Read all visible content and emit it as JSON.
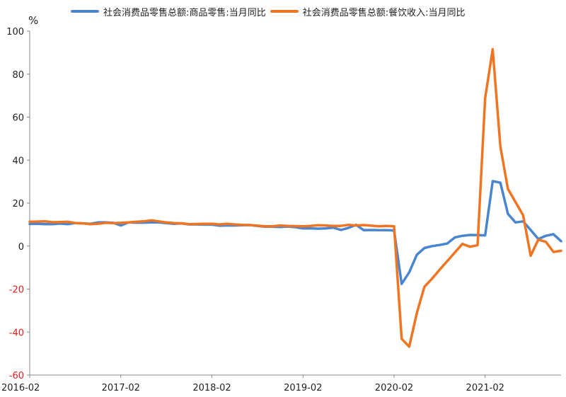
{
  "chart_data": {
    "type": "line",
    "unit_label": "%",
    "ylim": [
      -60,
      100
    ],
    "yticks": [
      100,
      80,
      60,
      40,
      20,
      0,
      -20,
      -40,
      -60
    ],
    "ytick_colors": {
      "positive": "#222222",
      "negative": "#e01e1e"
    },
    "xtick_labels": [
      {
        "label": "2016-02",
        "index": 0
      },
      {
        "label": "2017-02",
        "index": 12
      },
      {
        "label": "2018-02",
        "index": 24
      },
      {
        "label": "2019-02",
        "index": 36
      },
      {
        "label": "2020-02",
        "index": 48
      },
      {
        "label": "2021-02",
        "index": 60
      }
    ],
    "x_count": 71,
    "grid": false,
    "legend_position": "top",
    "series": [
      {
        "name": "社会消费品零售总额:商品零售:当月同比",
        "color": "#4a86d0",
        "values": [
          10.3,
          10.4,
          10.2,
          10.2,
          10.5,
          10.2,
          10.7,
          10.6,
          10.4,
          11,
          11,
          10.8,
          9.6,
          11,
          10.9,
          10.9,
          11,
          11,
          10.7,
          10.4,
          10.6,
          10.1,
          10.1,
          10,
          10,
          9.5,
          9.6,
          9.6,
          9.7,
          9.8,
          9.4,
          9,
          9,
          8.9,
          9.1,
          8.8,
          8.2,
          8.2,
          8.1,
          8.2,
          8.6,
          7.5,
          8.5,
          9.9,
          7.4,
          7.5,
          7.4,
          7.4,
          7.3,
          -17.6,
          -12.2,
          -4,
          -0.9,
          0,
          0.5,
          1.2,
          4,
          4.8,
          5.2,
          5.1,
          5,
          30.2,
          29.5,
          15,
          11,
          11.5,
          7.5,
          3.3,
          4.8,
          5.5,
          2.3
        ]
      },
      {
        "name": "社会消费品零售总额:餐饮收入:当月同比",
        "color": "#f07522",
        "values": [
          11.3,
          11.4,
          11.5,
          11.1,
          11.2,
          11.3,
          10.7,
          10.6,
          10.2,
          10.4,
          10.8,
          10.7,
          10.8,
          11,
          11.3,
          11.5,
          12,
          11.5,
          11,
          10.7,
          10.6,
          10.2,
          10.3,
          10.4,
          10.4,
          10.1,
          10.4,
          10.1,
          9.9,
          9.8,
          9.5,
          9.2,
          9.2,
          9.6,
          9.4,
          9.3,
          9.2,
          9.4,
          9.7,
          9.6,
          9.4,
          9.4,
          9.9,
          9.6,
          9.8,
          9.5,
          9.2,
          9.4,
          9.2,
          -43.1,
          -46.8,
          -31.1,
          -18.9,
          -15.2,
          -11,
          -7,
          -3,
          1,
          -0.3,
          0.4,
          68.8,
          91.6,
          46.4,
          26.6,
          20.5,
          14.3,
          -4.5,
          3,
          2,
          -2.7,
          -2.2
        ]
      }
    ]
  }
}
